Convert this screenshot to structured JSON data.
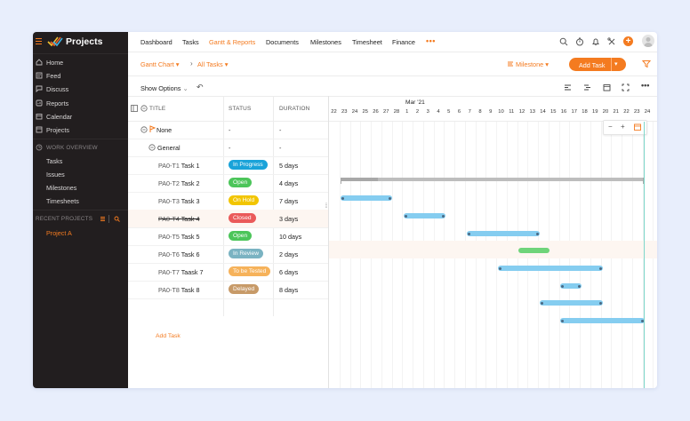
{
  "app": {
    "name": "Projects"
  },
  "sidebar": {
    "items": [
      {
        "label": "Home",
        "icon": "home-icon"
      },
      {
        "label": "Feed",
        "icon": "feed-icon"
      },
      {
        "label": "Discuss",
        "icon": "discuss-icon"
      },
      {
        "label": "Reports",
        "icon": "reports-icon"
      },
      {
        "label": "Calendar",
        "icon": "calendar-icon"
      },
      {
        "label": "Projects",
        "icon": "projects-icon"
      }
    ],
    "work_overview": {
      "label": "WORK OVERVIEW",
      "items": [
        "Tasks",
        "Issues",
        "Milestones",
        "Timesheets"
      ]
    },
    "recent_projects": {
      "label": "RECENT PROJECTS",
      "items": [
        "Project A"
      ]
    }
  },
  "topnav": {
    "tabs": [
      "Dashboard",
      "Tasks",
      "Gantt & Reports",
      "Documents",
      "Milestones",
      "Timesheet",
      "Finance"
    ],
    "active_tab": "Gantt & Reports",
    "more": "•••"
  },
  "subbar": {
    "view": "Gantt Chart",
    "filter": "All Tasks",
    "milestone": "Milestone",
    "add_task": "Add Task"
  },
  "optbar": {
    "show_options": "Show Options"
  },
  "table": {
    "headers": {
      "title": "TITLE",
      "status": "STATUS",
      "duration": "DURATION"
    },
    "rows": [
      {
        "id": "",
        "title": "None",
        "status": "-",
        "duration": "-",
        "kind": "group"
      },
      {
        "id": "",
        "title": "General",
        "status": "-",
        "duration": "-",
        "kind": "subgroup"
      },
      {
        "id": "PA0-T1",
        "title": "Task 1",
        "status": "In Progress",
        "status_color": "#1aa3d9",
        "duration": "5 days"
      },
      {
        "id": "PA0-T2",
        "title": "Task 2",
        "status": "Open",
        "status_color": "#4cc55a",
        "duration": "4 days"
      },
      {
        "id": "PA0-T3",
        "title": "Task 3",
        "status": "On Hold",
        "status_color": "#f2c500",
        "duration": "7 days"
      },
      {
        "id": "PA0-T4",
        "title": "Task 4",
        "status": "Closed",
        "status_color": "#ea5a5a",
        "duration": "3 days",
        "strike": true
      },
      {
        "id": "PA0-T5",
        "title": "Task 5",
        "status": "Open",
        "status_color": "#4cc55a",
        "duration": "10 days"
      },
      {
        "id": "PA0-T6",
        "title": "Task 6",
        "status": "In Review",
        "status_color": "#7ab3c2",
        "duration": "2 days"
      },
      {
        "id": "PA0-T7",
        "title": "Taask 7",
        "status": "To be Tested",
        "status_color": "#f6b25a",
        "duration": "6 days"
      },
      {
        "id": "PA0-T8",
        "title": "Task 8",
        "status": "Delayed",
        "status_color": "#c79a68",
        "duration": "8 days"
      }
    ],
    "add_task": "Add Task"
  },
  "gantt": {
    "month_label": "Mar '21",
    "day_labels": [
      "22",
      "23",
      "24",
      "25",
      "26",
      "27",
      "28",
      "1",
      "2",
      "3",
      "4",
      "5",
      "6",
      "7",
      "8",
      "9",
      "10",
      "11",
      "12",
      "13",
      "14",
      "15",
      "16",
      "17",
      "18",
      "19",
      "20",
      "21",
      "22",
      "23",
      "24"
    ],
    "zoom": {
      "minus": "−",
      "plus": "+"
    }
  },
  "colors": {
    "accent": "#f47b20",
    "sidebar_bg": "#221e1f",
    "bar": "#85cdf0",
    "bar_done": "#6fd47a"
  }
}
